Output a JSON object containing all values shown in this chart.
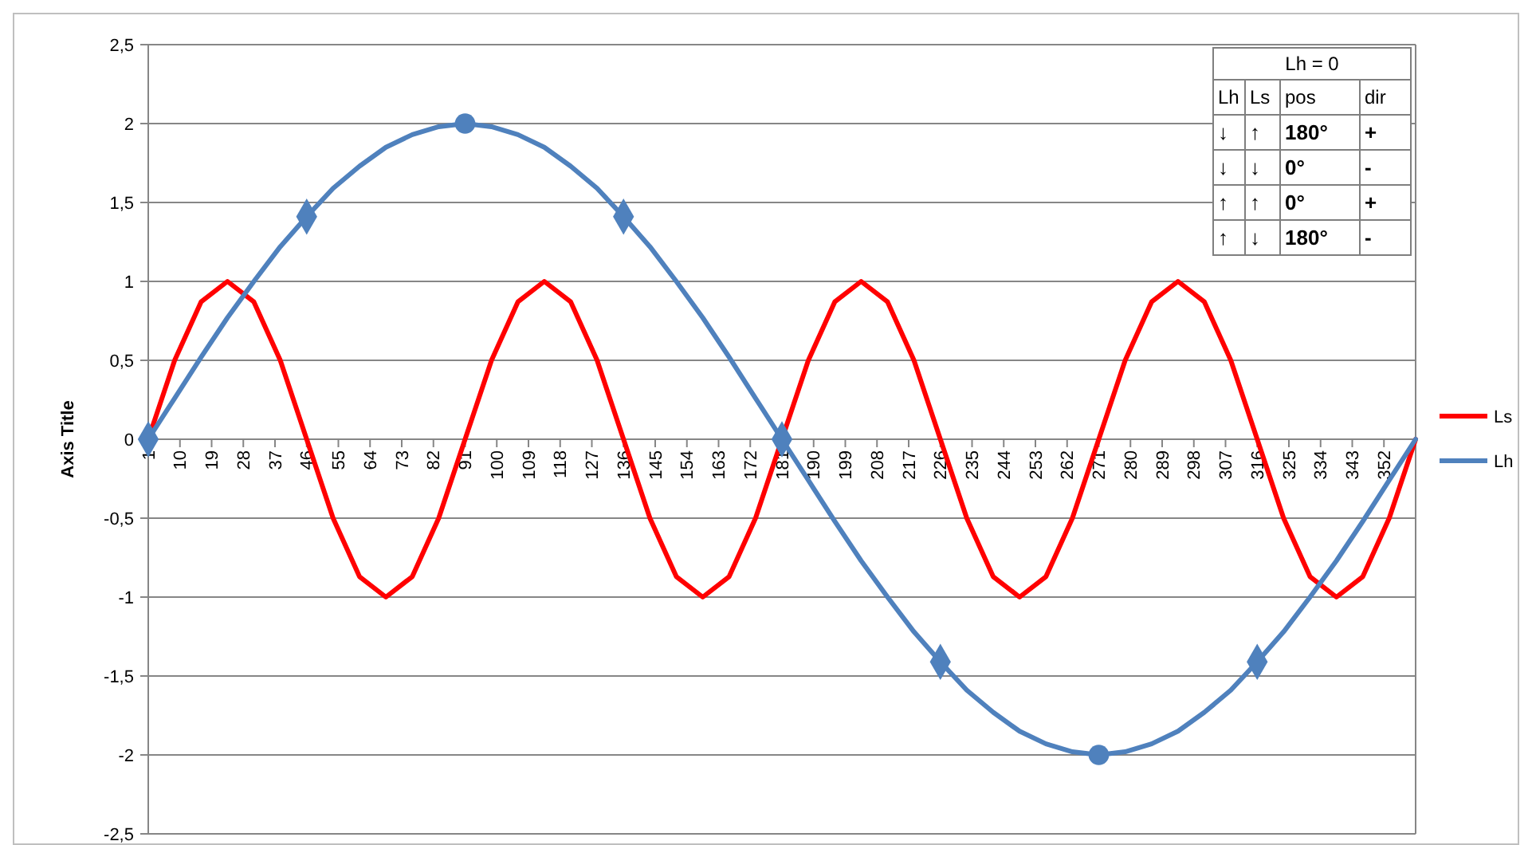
{
  "chart_data": {
    "type": "line",
    "ylabel": "Axis Title",
    "x": [
      1,
      8.5,
      16,
      23.5,
      31,
      38.5,
      46,
      53.5,
      61,
      68.5,
      76,
      83.5,
      91,
      98.5,
      106,
      113.5,
      121,
      128.5,
      136,
      143.5,
      151,
      158.5,
      166,
      173.5,
      181,
      188.5,
      196,
      203.5,
      211,
      218.5,
      226,
      233.5,
      241,
      248.5,
      256,
      263.5,
      271,
      278.5,
      286,
      293.5,
      301,
      308.5,
      316,
      323.5,
      331,
      338.5,
      346,
      353.5,
      361
    ],
    "xlim": [
      1,
      361
    ],
    "xticks": [
      1,
      10,
      19,
      28,
      37,
      46,
      55,
      64,
      73,
      82,
      91,
      100,
      109,
      118,
      127,
      136,
      145,
      154,
      163,
      172,
      181,
      190,
      199,
      208,
      217,
      226,
      235,
      244,
      253,
      262,
      271,
      280,
      289,
      298,
      307,
      316,
      325,
      334,
      343,
      352
    ],
    "ylim": [
      -2.5,
      2.5
    ],
    "yticks": [
      {
        "value": -2.5,
        "label": "-2,5"
      },
      -2,
      {
        "value": -1.5,
        "label": "-1,5"
      },
      -1,
      {
        "value": -0.5,
        "label": "-0,5"
      },
      0,
      {
        "value": 0.5,
        "label": "0,5"
      },
      1,
      {
        "value": 1.5,
        "label": "1,5"
      },
      2,
      {
        "value": 2.5,
        "label": "2,5"
      }
    ],
    "grid": "y",
    "legend": "right",
    "marker": "none",
    "line_style": "solid",
    "series": [
      {
        "name": "Ls",
        "color": "#ff0000",
        "values": [
          0,
          0.5,
          0.87,
          1,
          0.87,
          0.5,
          0,
          -0.5,
          -0.87,
          -1,
          -0.87,
          -0.5,
          0,
          0.5,
          0.87,
          1,
          0.87,
          0.5,
          0,
          -0.5,
          -0.87,
          -1,
          -0.87,
          -0.5,
          0,
          0.5,
          0.87,
          1,
          0.87,
          0.5,
          0,
          -0.5,
          -0.87,
          -1,
          -0.87,
          -0.5,
          0,
          0.5,
          0.87,
          1,
          0.87,
          0.5,
          0,
          -0.5,
          -0.87,
          -1,
          -0.87,
          -0.5,
          0
        ]
      },
      {
        "name": "Lh",
        "color": "#4f81bd",
        "values": [
          0,
          0.26,
          0.52,
          0.77,
          1,
          1.22,
          1.41,
          1.59,
          1.73,
          1.85,
          1.93,
          1.98,
          2,
          1.98,
          1.93,
          1.85,
          1.73,
          1.59,
          1.41,
          1.22,
          1,
          0.77,
          0.52,
          0.26,
          0,
          -0.26,
          -0.52,
          -0.77,
          -1,
          -1.22,
          -1.41,
          -1.59,
          -1.73,
          -1.85,
          -1.93,
          -1.98,
          -2,
          -1.98,
          -1.93,
          -1.85,
          -1.73,
          -1.59,
          -1.41,
          -1.22,
          -1,
          -0.77,
          -0.52,
          -0.26,
          0
        ]
      },
      {
        "type": "scatter",
        "marker": "diamond",
        "color": "#4f81bd",
        "x": [
          1,
          46,
          136,
          181,
          226,
          316
        ],
        "values": [
          0,
          1.41,
          1.41,
          0,
          -1.41,
          -1.41
        ]
      },
      {
        "type": "scatter",
        "marker": "circle",
        "color": "#4f81bd",
        "x": [
          91,
          271
        ],
        "values": [
          2,
          -2
        ]
      }
    ],
    "annotations": [
      "Lh = 0",
      "Lh",
      "Ls",
      "pos",
      "dir",
      "↓",
      "↑",
      "180°",
      "+",
      "↓",
      "↓",
      "0°",
      "-",
      "↑",
      "↑",
      "0°",
      "+",
      "↑",
      "↓",
      "180°",
      "-"
    ]
  }
}
